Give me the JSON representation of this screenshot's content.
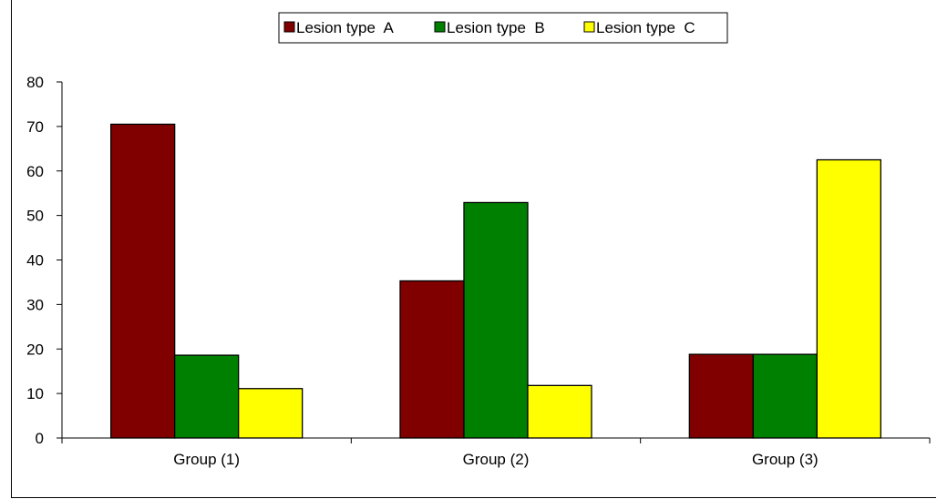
{
  "chart_data": {
    "type": "bar",
    "categories": [
      "Group (1)",
      "Group (2)",
      "Group (3)"
    ],
    "series": [
      {
        "name": "Lesion type  A",
        "color": "#800000",
        "values": [
          70.5,
          35.3,
          18.8
        ]
      },
      {
        "name": "Lesion type  B",
        "color": "#008000",
        "values": [
          18.6,
          52.9,
          18.8
        ]
      },
      {
        "name": "Lesion type  C",
        "color": "#ffff00",
        "values": [
          11.1,
          11.8,
          62.5
        ]
      }
    ],
    "title": "",
    "xlabel": "",
    "ylabel": "",
    "ylim": [
      0,
      80
    ],
    "yticks": [
      0,
      10,
      20,
      30,
      40,
      50,
      60,
      70,
      80
    ],
    "grid": false,
    "legend_position": "top-center"
  }
}
